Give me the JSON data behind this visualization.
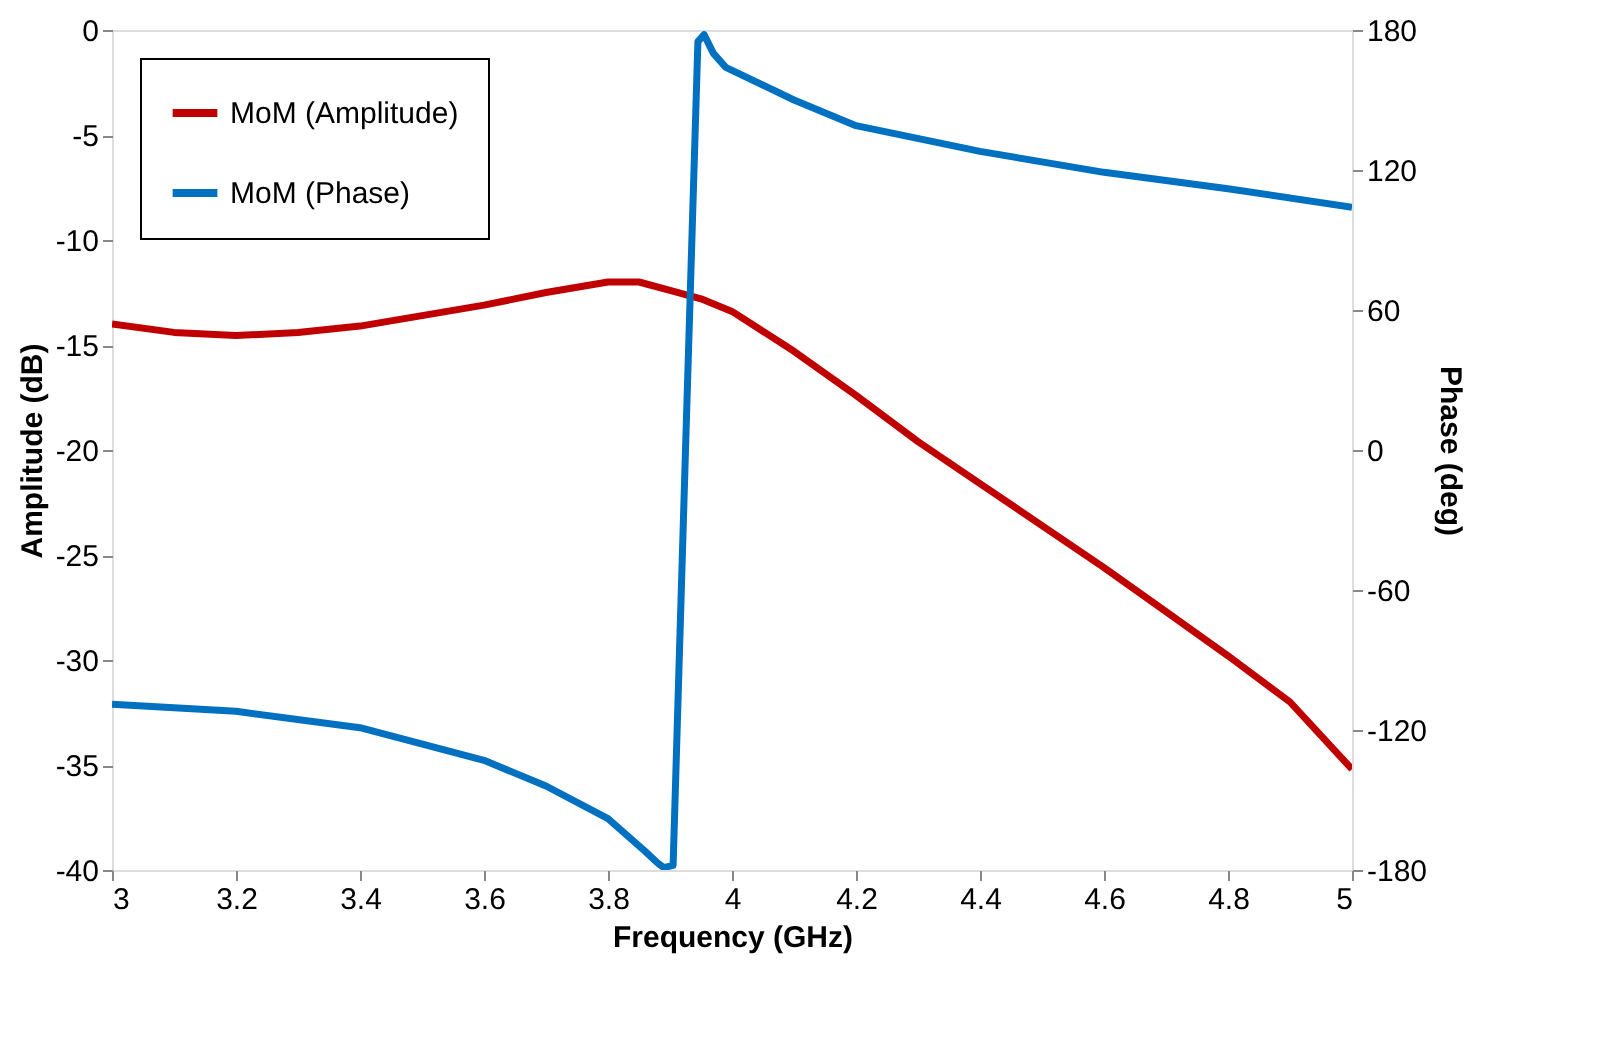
{
  "chart_data": {
    "type": "line",
    "xlabel": "Frequency (GHz)",
    "ylabel": "Amplitude (dB)",
    "y2label": "Phase (deg)",
    "xlim": [
      3,
      5
    ],
    "xticks": [
      3,
      3.2,
      3.4,
      3.6,
      3.8,
      4,
      4.2,
      4.4,
      4.6,
      4.8,
      5
    ],
    "ylim": [
      -40,
      0
    ],
    "yticks": [
      -40,
      -35,
      -30,
      -25,
      -20,
      -15,
      -10,
      -5,
      0
    ],
    "y2lim": [
      -180,
      180
    ],
    "y2ticks": [
      -180,
      -120,
      -60,
      0,
      60,
      120,
      180
    ],
    "legend": "top left",
    "grid": false,
    "marker": "none",
    "line_style": "solid",
    "series": [
      {
        "name": "MoM (Amplitude)",
        "color": "#c00000",
        "x": [
          3.0,
          3.1,
          3.2,
          3.3,
          3.4,
          3.5,
          3.6,
          3.7,
          3.8,
          3.85,
          3.9,
          3.95,
          4.0,
          4.1,
          4.2,
          4.3,
          4.4,
          4.5,
          4.6,
          4.7,
          4.8,
          4.9,
          5.0
        ],
        "values": [
          -14.0,
          -14.4,
          -14.55,
          -14.4,
          -14.1,
          -13.6,
          -13.1,
          -12.5,
          -12.0,
          -12.0,
          -12.4,
          -12.8,
          -13.4,
          -15.3,
          -17.4,
          -19.6,
          -21.6,
          -23.6,
          -25.6,
          -27.7,
          -29.8,
          -32.0,
          -35.2
        ]
      },
      {
        "name": "MoM (Phase)",
        "color": "#0070c0",
        "axis": "y2",
        "x": [
          3.0,
          3.2,
          3.4,
          3.6,
          3.7,
          3.8,
          3.86,
          3.88,
          3.89,
          3.905,
          3.925,
          3.945,
          3.955,
          3.97,
          3.99,
          4.1,
          4.2,
          4.4,
          4.6,
          4.8,
          5.0
        ],
        "values": [
          -109,
          -112,
          -119,
          -133,
          -144,
          -158,
          -172,
          -177,
          -179,
          -178,
          0,
          175,
          178,
          170,
          164,
          150,
          139,
          128,
          119,
          112,
          104
        ]
      }
    ]
  }
}
